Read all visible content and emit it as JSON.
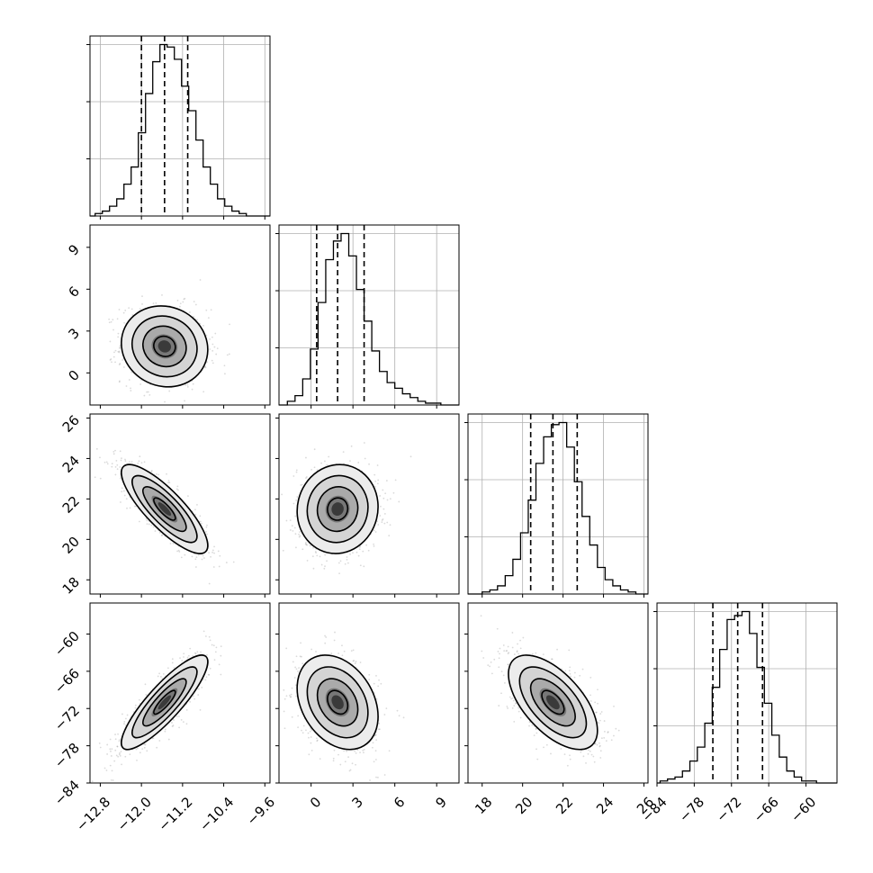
{
  "chart_data": {
    "type": "corner",
    "parameters": [
      {
        "ticks": [
          -12.8,
          -12.0,
          -11.2,
          -10.4,
          -9.6
        ],
        "tick_labels": [
          "−12.8",
          "−12.0",
          "−11.2",
          "−10.4",
          "−9.6"
        ],
        "range": [
          -13.0,
          -9.5
        ],
        "median": -11.55,
        "quantiles": [
          -12.0,
          -11.55,
          -11.1
        ],
        "hist_edges_start": -12.9,
        "hist_bin_width": 0.14,
        "hist_counts": [
          1,
          2,
          4,
          7,
          13,
          20,
          34,
          50,
          63,
          70,
          69,
          64,
          53,
          43,
          31,
          20,
          13,
          7,
          4,
          2,
          1
        ]
      },
      {
        "ticks": [
          0,
          3,
          6,
          9
        ],
        "tick_labels": [
          "0",
          "3",
          "6",
          "9"
        ],
        "range": [
          -2.3,
          10.6
        ],
        "median": 1.9,
        "quantiles": [
          0.4,
          1.9,
          3.8
        ],
        "hist_edges_start": -1.7,
        "hist_bin_width": 0.55,
        "hist_counts": [
          2,
          5,
          14,
          30,
          55,
          78,
          88,
          92,
          80,
          62,
          45,
          29,
          18,
          12,
          9,
          6,
          4,
          2,
          1,
          1
        ]
      },
      {
        "ticks": [
          18,
          20,
          22,
          24,
          26
        ],
        "tick_labels": [
          "18",
          "20",
          "22",
          "24",
          "26"
        ],
        "range": [
          17.3,
          26.2
        ],
        "median": 21.5,
        "quantiles": [
          20.4,
          21.5,
          22.7
        ],
        "hist_edges_start": 18.0,
        "hist_bin_width": 0.38,
        "hist_counts": [
          1,
          2,
          4,
          9,
          17,
          30,
          46,
          64,
          77,
          83,
          84,
          72,
          55,
          38,
          24,
          13,
          7,
          4,
          2,
          1
        ]
      },
      {
        "ticks": [
          -84,
          -78,
          -72,
          -66,
          -60
        ],
        "tick_labels": [
          "−84",
          "−78",
          "−72",
          "−66",
          "−60"
        ],
        "range": [
          -84.0,
          -55.0
        ],
        "median": -71.0,
        "quantiles": [
          -75.0,
          -71.0,
          -67.0
        ],
        "hist_edges_start": -83.5,
        "hist_bin_width": 1.2,
        "hist_counts": [
          1,
          2,
          3,
          6,
          11,
          18,
          30,
          48,
          67,
          82,
          84,
          86,
          75,
          58,
          40,
          24,
          13,
          6,
          3,
          1,
          1
        ]
      }
    ],
    "correlations": [
      [
        1.0,
        -0.08,
        -0.82,
        0.86
      ],
      [
        -0.08,
        1.0,
        0.05,
        -0.3
      ],
      [
        -0.82,
        0.05,
        1.0,
        -0.6
      ],
      [
        0.86,
        -0.3,
        -0.6,
        1.0
      ]
    ],
    "sigmas": [
      0.42,
      1.45,
      1.1,
      3.8
    ],
    "hist_y_ticks": 3,
    "grid": true,
    "legend": "none"
  }
}
